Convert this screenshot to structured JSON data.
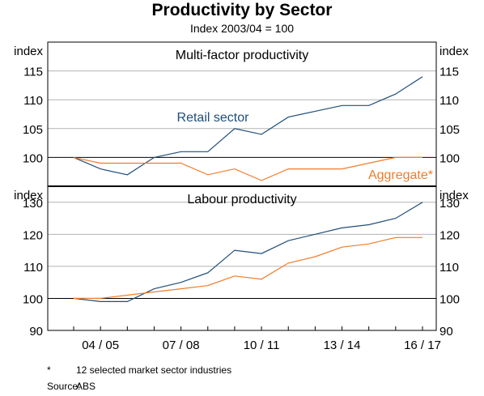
{
  "chart_data": [
    {
      "type": "line",
      "panel": "Multi-factor productivity",
      "ylabel_left": "index",
      "ylabel_right": "index",
      "ylim": [
        95,
        120
      ],
      "yticks": [
        100,
        105,
        110,
        115
      ],
      "x": [
        "03/04",
        "04/05",
        "05/06",
        "06/07",
        "07/08",
        "08/09",
        "09/10",
        "10/11",
        "11/12",
        "12/13",
        "13/14",
        "14/15",
        "15/16",
        "16/17"
      ],
      "series": [
        {
          "name": "Retail sector",
          "color": "#1f4e79",
          "values": [
            100,
            98,
            97,
            100,
            101,
            101,
            105,
            104,
            107,
            108,
            109,
            109,
            111,
            114
          ]
        },
        {
          "name": "Aggregate*",
          "color": "#f07c2a",
          "values": [
            100,
            99,
            99,
            99,
            99,
            97,
            98,
            96,
            98,
            98,
            98,
            99,
            100,
            100
          ]
        }
      ]
    },
    {
      "type": "line",
      "panel": "Labour productivity",
      "ylabel_left": "index",
      "ylabel_right": "index",
      "ylim": [
        90,
        135
      ],
      "yticks": [
        90,
        100,
        110,
        120,
        130
      ],
      "x": [
        "03/04",
        "04/05",
        "05/06",
        "06/07",
        "07/08",
        "08/09",
        "09/10",
        "10/11",
        "11/12",
        "12/13",
        "13/14",
        "14/15",
        "15/16",
        "16/17"
      ],
      "xtick_labels": [
        "04 / 05",
        "07 / 08",
        "10 / 11",
        "13 / 14",
        "16 / 17"
      ],
      "series": [
        {
          "name": "Retail sector",
          "color": "#1f4e79",
          "values": [
            100,
            99,
            99,
            103,
            105,
            108,
            115,
            114,
            118,
            120,
            122,
            123,
            125,
            130
          ]
        },
        {
          "name": "Aggregate*",
          "color": "#f07c2a",
          "values": [
            100,
            100,
            101,
            102,
            103,
            104,
            107,
            106,
            111,
            113,
            116,
            117,
            119,
            119
          ]
        }
      ]
    }
  ],
  "header": {
    "title": "Productivity by Sector",
    "subtitle": "Index 2003/04 = 100"
  },
  "footer": {
    "footnote_marker": "*",
    "footnote_text": "12 selected market sector industries",
    "source_label": "Source:",
    "source_text": "ABS"
  }
}
